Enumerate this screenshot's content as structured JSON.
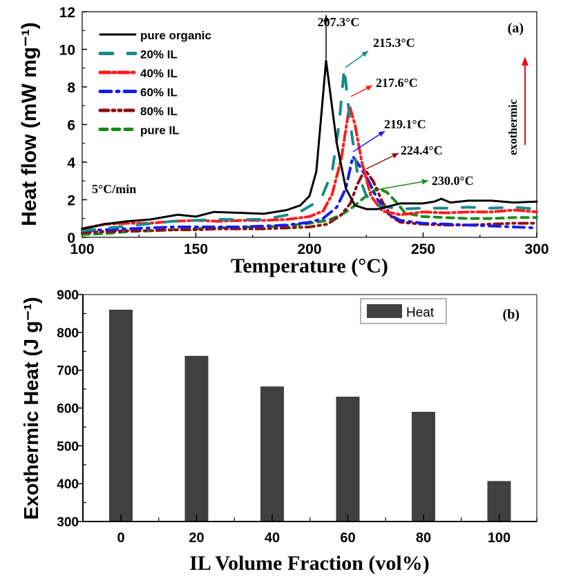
{
  "chart_data": [
    {
      "type": "line",
      "panel_label": "(a)",
      "xlabel": "Temperature (°C)",
      "ylabel": "Heat flow (mW mg⁻¹)",
      "xlim": [
        100,
        300
      ],
      "ylim": [
        0,
        12
      ],
      "xticks": [
        100,
        150,
        200,
        250,
        300
      ],
      "yticks": [
        0,
        2,
        4,
        6,
        8,
        10,
        12
      ],
      "grid": false,
      "legend": "top-left",
      "rate_annotation": "5°C/min",
      "exothermic_label": "exothermic",
      "series": [
        {
          "name": "pure organic",
          "color": "#000000",
          "dash": "solid",
          "peak_label": "207.3°C",
          "peak_x": 207.3,
          "x": [
            100,
            110,
            120,
            130,
            142,
            150,
            158,
            170,
            180,
            190,
            196,
            200,
            203,
            207.3,
            212,
            216,
            220,
            225,
            230,
            240,
            250,
            255,
            258,
            262,
            270,
            280,
            290,
            300
          ],
          "y": [
            0.45,
            0.7,
            0.85,
            0.95,
            1.2,
            1.1,
            1.35,
            1.3,
            1.25,
            1.45,
            1.7,
            2.2,
            3.5,
            9.4,
            5.0,
            2.6,
            1.7,
            1.5,
            1.5,
            1.8,
            1.8,
            1.9,
            2.05,
            1.85,
            1.95,
            1.95,
            1.85,
            1.9
          ]
        },
        {
          "name": "20% IL",
          "color": "#1a8a8a",
          "dash": "longdash",
          "peak_label": "215.3°C",
          "peak_x": 215.3,
          "x": [
            100,
            120,
            140,
            160,
            180,
            195,
            205,
            210,
            213,
            215.3,
            218,
            221,
            225,
            230,
            240,
            250,
            260,
            270,
            280,
            290,
            300
          ],
          "y": [
            0.35,
            0.6,
            0.85,
            0.95,
            0.95,
            1.3,
            2.0,
            3.5,
            6.0,
            9.0,
            6.0,
            3.5,
            2.2,
            1.7,
            1.5,
            1.55,
            1.55,
            1.6,
            1.55,
            1.6,
            1.5
          ]
        },
        {
          "name": "40% IL",
          "color": "#ff1a1a",
          "dash": "dashdot",
          "peak_label": "217.6°C",
          "peak_x": 217.6,
          "x": [
            100,
            110,
            120,
            130,
            140,
            150,
            160,
            170,
            180,
            190,
            200,
            206,
            210,
            214,
            217.6,
            220,
            223,
            227,
            232,
            240,
            250,
            260,
            270,
            280,
            290,
            300
          ],
          "y": [
            0.45,
            0.7,
            0.75,
            0.75,
            0.85,
            0.9,
            0.85,
            0.9,
            0.9,
            0.95,
            1.1,
            1.4,
            2.3,
            4.2,
            7.0,
            6.0,
            4.0,
            2.2,
            1.4,
            1.2,
            1.35,
            1.3,
            1.35,
            1.35,
            1.45,
            1.35
          ]
        },
        {
          "name": "60% IL",
          "color": "#1a1aee",
          "dash": "dashdot2",
          "peak_label": "219.1°C",
          "peak_x": 219.1,
          "x": [
            100,
            110,
            120,
            130,
            140,
            150,
            160,
            170,
            180,
            190,
            200,
            206,
            212,
            216,
            219.1,
            222,
            226,
            230,
            235,
            240,
            250,
            260,
            270,
            280,
            290,
            300
          ],
          "y": [
            0.35,
            0.4,
            0.45,
            0.5,
            0.55,
            0.55,
            0.55,
            0.55,
            0.6,
            0.65,
            0.8,
            1.0,
            1.6,
            2.6,
            4.3,
            3.8,
            3.0,
            2.0,
            1.2,
            0.9,
            0.75,
            0.7,
            0.65,
            0.6,
            0.55,
            0.5
          ]
        },
        {
          "name": "80% IL",
          "color": "#8b1010",
          "dash": "dashdotdot",
          "peak_label": "224.4°C",
          "peak_x": 224.4,
          "x": [
            100,
            110,
            120,
            130,
            140,
            150,
            160,
            170,
            180,
            190,
            200,
            208,
            214,
            218,
            221,
            224.4,
            228,
            232,
            236,
            240,
            250,
            260,
            270,
            280,
            290,
            300
          ],
          "y": [
            0.25,
            0.3,
            0.35,
            0.35,
            0.4,
            0.4,
            0.45,
            0.45,
            0.45,
            0.5,
            0.55,
            0.7,
            1.2,
            1.8,
            2.8,
            3.6,
            3.0,
            1.9,
            1.1,
            0.8,
            0.7,
            0.65,
            0.65,
            0.7,
            0.75,
            0.75
          ]
        },
        {
          "name": "pure IL",
          "color": "#1a8a1a",
          "dash": "shortdash",
          "peak_label": "230.0°C",
          "peak_x": 230.0,
          "x": [
            100,
            110,
            120,
            130,
            140,
            150,
            160,
            170,
            180,
            190,
            200,
            208,
            214,
            218,
            222,
            226,
            230,
            234,
            238,
            242,
            250,
            260,
            270,
            280,
            290,
            300
          ],
          "y": [
            0.15,
            0.2,
            0.3,
            0.35,
            0.4,
            0.45,
            0.5,
            0.55,
            0.55,
            0.6,
            0.75,
            0.9,
            1.2,
            1.5,
            1.9,
            2.3,
            2.6,
            2.4,
            1.9,
            1.3,
            1.1,
            1.05,
            1.0,
            1.0,
            1.05,
            1.05
          ]
        }
      ]
    },
    {
      "type": "bar",
      "panel_label": "(b)",
      "xlabel": "IL Volume Fraction (vol%)",
      "ylabel": "Exothermic Heat (J g⁻¹)",
      "categories": [
        "0",
        "20",
        "40",
        "60",
        "80",
        "100"
      ],
      "values": [
        860,
        738,
        657,
        630,
        590,
        407
      ],
      "ylim": [
        300,
        900
      ],
      "yticks": [
        300,
        400,
        500,
        600,
        700,
        800,
        900
      ],
      "grid": false,
      "legend": "top-right",
      "series": [
        {
          "name": "Heat",
          "color": "#404040",
          "values": [
            860,
            738,
            657,
            630,
            590,
            407
          ]
        }
      ]
    }
  ]
}
